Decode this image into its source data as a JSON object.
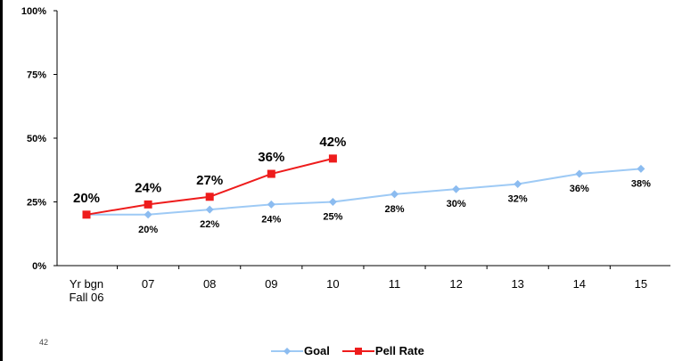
{
  "page_number": "42",
  "colors": {
    "goal": "#9ecaf5",
    "goal_marker": "#8cbcf0",
    "pell": "#ee1c1c",
    "axis": "#000000"
  },
  "chart_data": {
    "type": "line",
    "title": "",
    "xlabel": "",
    "ylabel": "",
    "categories": [
      "Yr bgn\nFall 06",
      "07",
      "08",
      "09",
      "10",
      "11",
      "12",
      "13",
      "14",
      "15"
    ],
    "ylim": [
      0,
      100
    ],
    "yticks": [
      0,
      25,
      50,
      75,
      100
    ],
    "ytick_labels": [
      "0%",
      "25%",
      "50%",
      "75%",
      "100%"
    ],
    "grid": false,
    "legend_position": "bottom",
    "series": [
      {
        "name": "Goal",
        "marker": "diamond",
        "values": [
          20,
          20,
          22,
          24,
          25,
          28,
          30,
          32,
          36,
          38
        ],
        "labels": [
          "",
          "20%",
          "22%",
          "24%",
          "25%",
          "28%",
          "30%",
          "32%",
          "36%",
          "38%"
        ]
      },
      {
        "name": "Pell Rate",
        "marker": "square",
        "values": [
          20,
          24,
          27,
          36,
          42,
          null,
          null,
          null,
          null,
          null
        ],
        "labels": [
          "20%",
          "24%",
          "27%",
          "36%",
          "42%",
          "",
          "",
          "",
          "",
          ""
        ]
      }
    ]
  }
}
